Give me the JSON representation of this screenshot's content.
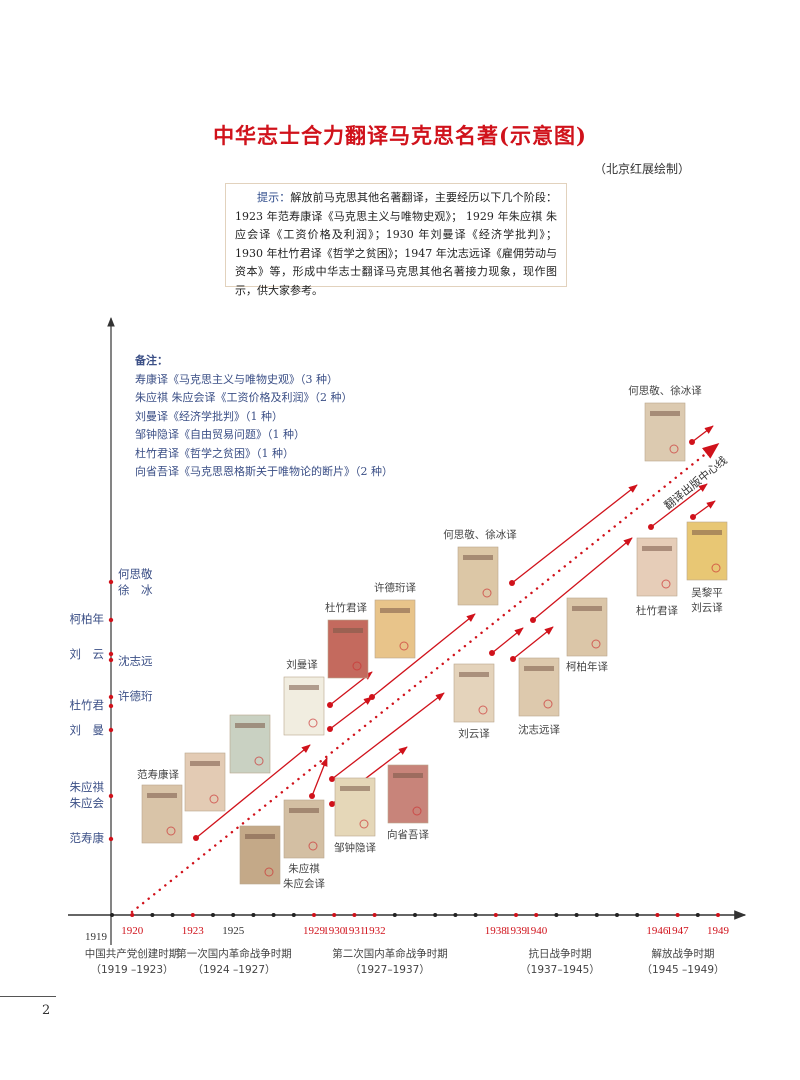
{
  "title": "中华志士合力翻译马克思名著(示意图)",
  "credit": "（北京红展绘制）",
  "hint": {
    "label": "提示：",
    "text": "解放前马克思其他名著翻译，主要经历以下几个阶段：1923 年范寿康译《马克思主义与唯物史观》； 1929 年朱应祺 朱应会译《工资价格及利润》；1930 年刘曼译《经济学批判》；1930 年杜竹君译《哲学之贫困》；1947 年沈志远译《雇佣劳动与资本》等，形成中华志士翻译马克思其他名著接力现象，现作图示，供大家参考。"
  },
  "notes": {
    "heading": "备注：",
    "items": [
      "寿康译《马克思主义与唯物史观》（3 种）",
      "朱应祺 朱应会译《工资价格及利润》（2 种）",
      "刘曼译《经济学批判》（1 种）",
      "邹钟隐译《自由贸易问题》（1 种）",
      "杜竹君译《哲学之贫困》（1 种）",
      "向省吾译《马克思恩格斯关于唯物论的断片》（2 种）"
    ]
  },
  "colors": {
    "accent": "#d0121b",
    "axis": "#444444",
    "label_blue": "#3b4f86"
  },
  "x_axis": {
    "years": [
      1919,
      1920,
      1921,
      1922,
      1923,
      1924,
      1925,
      1926,
      1927,
      1928,
      1929,
      1930,
      1931,
      1932,
      1933,
      1934,
      1935,
      1936,
      1937,
      1938,
      1939,
      1940,
      1941,
      1942,
      1943,
      1944,
      1945,
      1946,
      1947,
      1948,
      1949
    ],
    "labels": [
      {
        "year": 1919,
        "text": "1919",
        "red": false
      },
      {
        "year": 1920,
        "text": "1920",
        "red": true
      },
      {
        "year": 1923,
        "text": "1923",
        "red": true
      },
      {
        "year": 1925,
        "text": "1925",
        "red": false
      },
      {
        "year": 1929,
        "text": "1929",
        "red": true
      },
      {
        "year": 1930,
        "text": "1930",
        "red": true
      },
      {
        "year": 1931,
        "text": "1931",
        "red": true
      },
      {
        "year": 1932,
        "text": "1932",
        "red": true
      },
      {
        "year": 1938,
        "text": "1938",
        "red": true
      },
      {
        "year": 1939,
        "text": "1939",
        "red": true
      },
      {
        "year": 1940,
        "text": "1940",
        "red": true
      },
      {
        "year": 1946,
        "text": "1946",
        "red": true
      },
      {
        "year": 1947,
        "text": "1947",
        "red": true
      },
      {
        "year": 1949,
        "text": "1949",
        "red": true
      }
    ],
    "periods": [
      {
        "name": "中国共产党创建时期",
        "range": "（1919 –1923）"
      },
      {
        "name": "第一次国内革命战争时期",
        "range": "（1924 –1927）"
      },
      {
        "name": "第二次国内革命战争时期",
        "range": "（1927–1937）"
      },
      {
        "name": "抗日战争时期",
        "range": "（1937–1945）"
      },
      {
        "name": "解放战争时期",
        "range": "（1945 –1949）"
      }
    ]
  },
  "y_axis": {
    "translators": [
      {
        "lines": [
          "何思敬",
          "徐　冰"
        ],
        "side": "right"
      },
      {
        "lines": [
          "柯柏年"
        ],
        "side": "left"
      },
      {
        "lines": [
          "刘　云"
        ],
        "side": "left"
      },
      {
        "lines": [
          "沈志远"
        ],
        "side": "right"
      },
      {
        "lines": [
          "许德珩"
        ],
        "side": "right"
      },
      {
        "lines": [
          "杜竹君"
        ],
        "side": "left"
      },
      {
        "lines": [
          "刘　曼"
        ],
        "side": "left"
      },
      {
        "lines": [
          "朱应祺",
          "朱应会"
        ],
        "side": "left"
      },
      {
        "lines": [
          "范寿康"
        ],
        "side": "left"
      }
    ]
  },
  "center_line_label": "翻译出版中心线",
  "books": [
    {
      "label": [
        "范寿康译"
      ],
      "cover": "#d9c4a8"
    },
    {
      "label": [],
      "cover": "#e3cbb4"
    },
    {
      "label": [],
      "cover": "#c9d1c2"
    },
    {
      "label": [],
      "cover": "#c4a988"
    },
    {
      "label": [
        "朱应祺",
        "朱应会译"
      ],
      "cover": "#d3bfa3"
    },
    {
      "label": [
        "刘曼译"
      ],
      "cover": "#f1ede0"
    },
    {
      "label": [
        "杜竹君译"
      ],
      "cover": "#c46a5e"
    },
    {
      "label": [
        "许德珩译"
      ],
      "cover": "#e8c48a"
    },
    {
      "label": [
        "邹钟隐译"
      ],
      "cover": "#e5d7b8"
    },
    {
      "label": [
        "向省吾译"
      ],
      "cover": "#c8847a"
    },
    {
      "label": [
        "何思敬、徐冰译"
      ],
      "cover": "#dcc7a6"
    },
    {
      "label": [
        "刘云译"
      ],
      "cover": "#e4d3bb"
    },
    {
      "label": [
        "沈志远译"
      ],
      "cover": "#ddc9ad"
    },
    {
      "label": [
        "柯柏年译"
      ],
      "cover": "#dbc6a8"
    },
    {
      "label": [
        "杜竹君译"
      ],
      "cover": "#e6cdb8"
    },
    {
      "label": [
        "吴黎平",
        "刘云译"
      ],
      "cover": "#e8c774"
    },
    {
      "label": [
        "何思敬、徐冰译"
      ],
      "cover": "#dccab0"
    }
  ],
  "page_number": "2"
}
